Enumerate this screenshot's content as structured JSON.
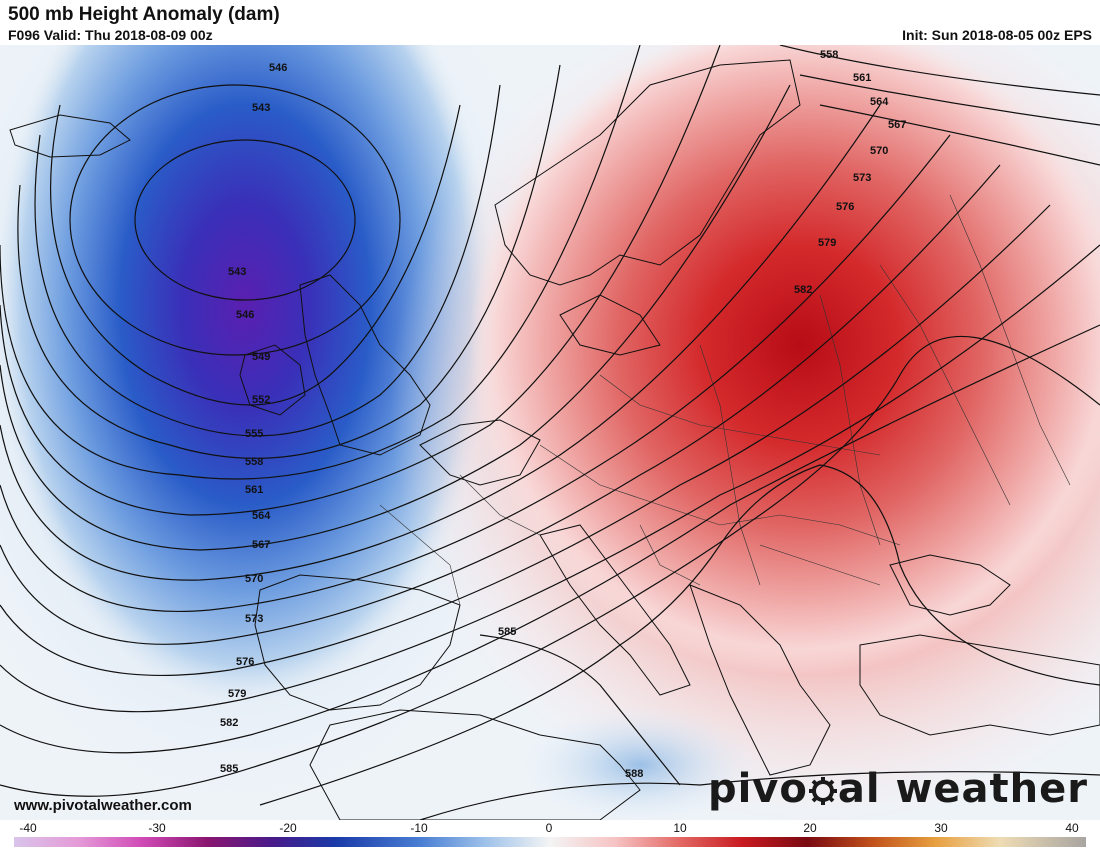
{
  "header": {
    "title": "500 mb Height Anomaly (dam)",
    "subtitle": "F096 Valid: Thu 2018-08-09 00z",
    "init": "Init: Sun 2018-08-05 00z EPS"
  },
  "map": {
    "variable": "500 mb height anomaly",
    "units": "dam",
    "contour_labels": [
      "546",
      "543",
      "543",
      "546",
      "549",
      "552",
      "555",
      "558",
      "561",
      "564",
      "567",
      "570",
      "573",
      "576",
      "579",
      "582",
      "585",
      "585",
      "558",
      "561",
      "564",
      "567",
      "570",
      "573",
      "576",
      "579",
      "582",
      "588"
    ],
    "colors": {
      "negative_strong": "#3b1fa8",
      "negative_mid": "#2f5fd0",
      "negative_light": "#bcd6ee",
      "neutral": "#f4f4f4",
      "positive_light": "#f6cccc",
      "positive_mid": "#e26a66",
      "positive_strong": "#c3121a"
    }
  },
  "colorbar": {
    "ticks": [
      "-40",
      "-30",
      "-20",
      "-10",
      "0",
      "10",
      "20",
      "30",
      "40"
    ]
  },
  "footer": {
    "website": "www.pivotalweather.com",
    "brand_part1": "pivo",
    "brand_part2": "al weather"
  }
}
